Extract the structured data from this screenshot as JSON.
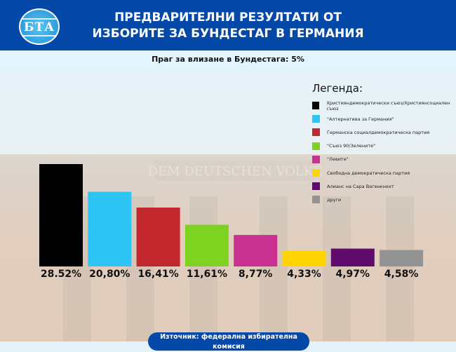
{
  "header": {
    "title": "ПРЕДВАРИТЕЛНИ РЕЗУЛТАТИ ОТ ИЗБОРИТЕ ЗА БУНДЕСТАГ В ГЕРМАНИЯ",
    "logo_text": "БТА"
  },
  "subtitle": "Праг за влизане в Бундестага: 5%",
  "source": "Източник: федерална избирателна комисия",
  "background_text": "DEM DEUTSCHEN VOLKE",
  "chart_data": {
    "type": "bar",
    "title": "ПРЕДВАРИТЕЛНИ РЕЗУЛТАТИ ОТ ИЗБОРИТЕ ЗА БУНДЕСТАГ В ГЕРМАНИЯ",
    "legend_title": "Легенда:",
    "legend_position": "top-right",
    "categories": [
      "Християндемократически съюз/Християнсоциален съюз",
      "\"Алтернатива за Германия\"",
      "Германска социалдемократическа партия",
      "\"Съюз 90/Зелените\"",
      "\"Левите\"",
      "Свободна демократическа партия",
      "Алианс на Сара Вагенкнехт",
      "други"
    ],
    "values": [
      28.52,
      20.8,
      16.41,
      11.61,
      8.77,
      4.33,
      4.97,
      4.58
    ],
    "data_labels": [
      "28.52%",
      "20,80%",
      "16,41%",
      "11,61%",
      "8,77%",
      "4,33%",
      "4,97%",
      "4,58%"
    ],
    "colors": [
      "#000000",
      "#2ec4f3",
      "#c1272d",
      "#7ed321",
      "#c9318f",
      "#ffd400",
      "#5e0b6b",
      "#939393"
    ],
    "ylim": [
      0,
      30
    ],
    "grid": false
  }
}
